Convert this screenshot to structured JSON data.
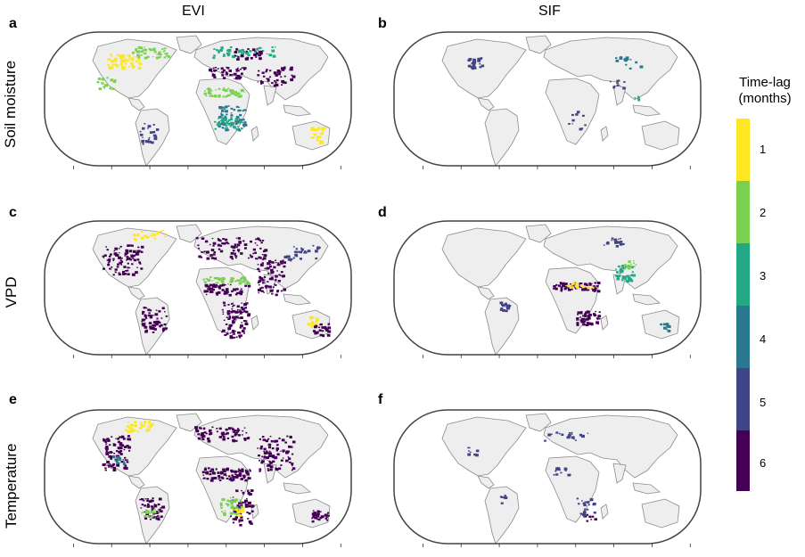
{
  "columns": [
    "EVI",
    "SIF"
  ],
  "rows": [
    "Soil moisture",
    "VPD",
    "Temperature"
  ],
  "panels": [
    "a",
    "b",
    "c",
    "d",
    "e",
    "f"
  ],
  "colorbar": {
    "title_line1": "Time-lag",
    "title_line2": "(months)",
    "ticks": [
      "1",
      "2",
      "3",
      "4",
      "5",
      "6"
    ],
    "colors": [
      "#fde725",
      "#7ad151",
      "#22a884",
      "#2a788e",
      "#414487",
      "#440154"
    ]
  },
  "map_style": {
    "land": "#eeeeee",
    "outline": "#444444",
    "coast": "#8a8a8a"
  }
}
